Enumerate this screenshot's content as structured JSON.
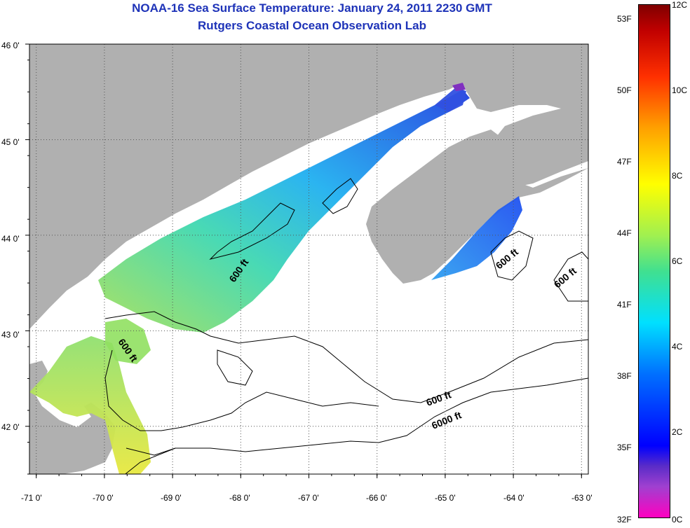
{
  "header": {
    "title": "NOAA-16 Sea Surface Temperature:  January 24, 2011 2230 GMT",
    "subtitle": "Rutgers Coastal Ocean Observation Lab"
  },
  "map": {
    "lon_range": [
      -71.1,
      -62.9
    ],
    "lat_range": [
      41.5,
      46.0
    ],
    "lon_ticks": [
      "-71 0'",
      "-70 0'",
      "-69 0'",
      "-68 0'",
      "-67 0'",
      "-66 0'",
      "-65 0'",
      "-64 0'",
      "-63 0'"
    ],
    "lat_ticks": [
      "46 0'",
      "45 0'",
      "44 0'",
      "43 0'",
      "42 0'"
    ],
    "contour_labels": [
      "600 ft",
      "600 ft",
      "600 ft",
      "600 ft",
      "600 ft",
      "6000 ft"
    ],
    "colors": {
      "land": "#b0b0b0",
      "water_nodata": "#ffffff",
      "contour": "#000000",
      "grid": "#555555"
    }
  },
  "colorbar": {
    "fahrenheit_labels": [
      "53F",
      "50F",
      "47F",
      "44F",
      "41F",
      "38F",
      "35F",
      "32F"
    ],
    "celsius_labels": [
      "12C",
      "10C",
      "8C",
      "6C",
      "4C",
      "2C",
      "0C"
    ]
  }
}
